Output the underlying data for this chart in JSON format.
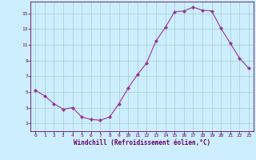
{
  "x": [
    0,
    1,
    2,
    3,
    4,
    5,
    6,
    7,
    8,
    9,
    10,
    11,
    12,
    13,
    14,
    15,
    16,
    17,
    18,
    19,
    20,
    21,
    22,
    23
  ],
  "y": [
    5.2,
    4.5,
    3.5,
    2.8,
    3.0,
    1.8,
    1.5,
    1.4,
    1.8,
    3.5,
    5.5,
    7.2,
    8.7,
    11.5,
    13.2,
    15.2,
    15.3,
    15.8,
    15.4,
    15.3,
    13.1,
    11.2,
    9.3,
    8.0
  ],
  "line_color": "#993399",
  "marker": "D",
  "marker_size": 2,
  "xlim": [
    -0.5,
    23.5
  ],
  "ylim": [
    0,
    16.5
  ],
  "xticks": [
    0,
    1,
    2,
    3,
    4,
    5,
    6,
    7,
    8,
    9,
    10,
    11,
    12,
    13,
    14,
    15,
    16,
    17,
    18,
    19,
    20,
    21,
    22,
    23
  ],
  "yticks": [
    1,
    3,
    5,
    7,
    9,
    11,
    13,
    15
  ],
  "xlabel": "Windchill (Refroidissement éolien,°C)",
  "bg_color": "#cceeff",
  "grid_color": "#aacccc",
  "tick_color": "#660066",
  "label_color": "#660066"
}
